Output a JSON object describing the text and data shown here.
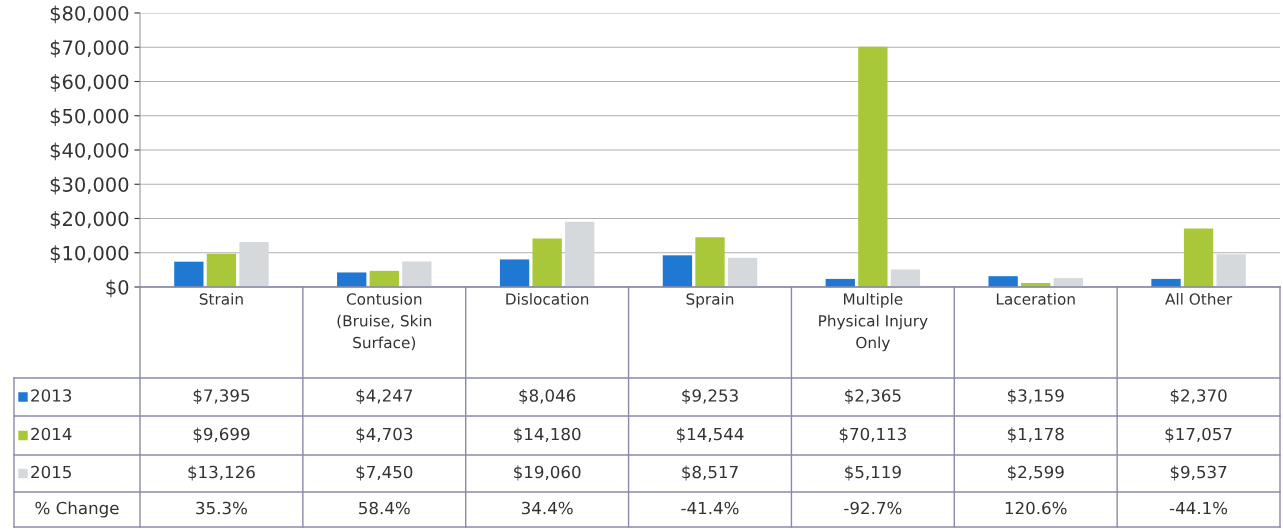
{
  "chart_data": {
    "type": "bar",
    "categories": [
      "Strain",
      "Contusion\n(Bruise, Skin\nSurface)",
      "Dislocation",
      "Sprain",
      "Multiple\nPhysical Injury\nOnly",
      "Laceration",
      "All Other"
    ],
    "series": [
      {
        "name": "2013",
        "color": "#1f78d1",
        "values": [
          7395,
          4247,
          8046,
          9253,
          2365,
          3159,
          2370
        ],
        "value_labels": [
          "$7,395",
          "$4,247",
          "$8,046",
          "$9,253",
          "$2,365",
          "$3,159",
          "$2,370"
        ]
      },
      {
        "name": "2014",
        "color": "#a8c83a",
        "values": [
          9699,
          4703,
          14180,
          14544,
          70113,
          1178,
          17057
        ],
        "value_labels": [
          "$9,699",
          "$4,703",
          "$14,180",
          "$14,544",
          "$70,113",
          "$1,178",
          "$17,057"
        ]
      },
      {
        "name": "2015",
        "color": "#d6d9dc",
        "values": [
          13126,
          7450,
          19060,
          8517,
          5119,
          2599,
          9537
        ],
        "value_labels": [
          "$13,126",
          "$7,450",
          "$19,060",
          "$8,517",
          "$5,119",
          "$2,599",
          "$9,537"
        ]
      }
    ],
    "annotations": [
      "% Change",
      "35.3%",
      "58.4%",
      "34.4%",
      "-41.4%",
      "-92.7%",
      "120.6%",
      "-44.1%"
    ],
    "ylim": [
      0,
      80000
    ],
    "yticks": [
      {
        "value": 0,
        "label": "$0"
      },
      {
        "value": 10000,
        "label": "$10,000"
      },
      {
        "value": 20000,
        "label": "$20,000"
      },
      {
        "value": 30000,
        "label": "$30,000"
      },
      {
        "value": 40000,
        "label": "$40,000"
      },
      {
        "value": 50000,
        "label": "$50,000"
      },
      {
        "value": 60000,
        "label": "$60,000"
      },
      {
        "value": 70000,
        "label": "$70,000"
      },
      {
        "value": 80000,
        "label": "$80,000"
      }
    ],
    "grid": "y",
    "legend": "bottom"
  }
}
